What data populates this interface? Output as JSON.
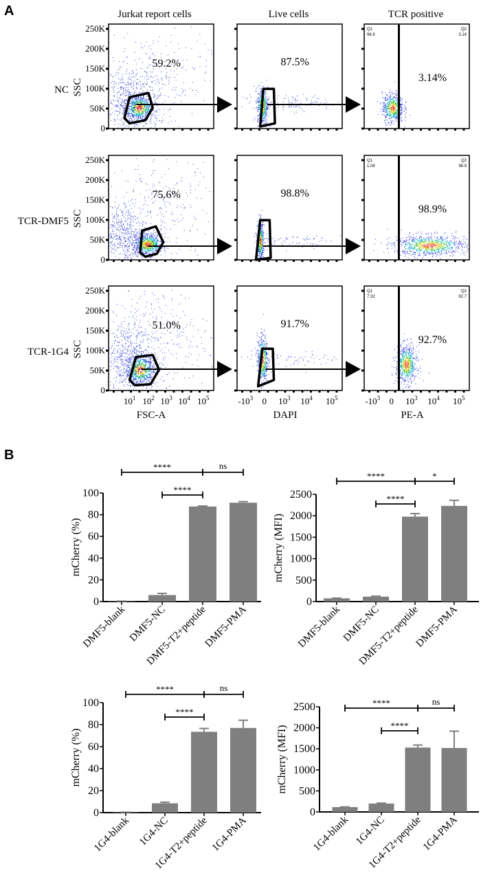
{
  "panel_labels": {
    "a": "A",
    "b": "B"
  },
  "flow": {
    "column_titles": [
      "Jurkat report cells",
      "Live cells",
      "TCR positive"
    ],
    "y_axis_label": "SSC",
    "y_ticks": [
      "0",
      "50K",
      "100K",
      "150K",
      "200K",
      "250K"
    ],
    "x_axis_labels": [
      "FSC-A",
      "DAPI",
      "PE-A"
    ],
    "x_ticks": [
      [
        {
          "base": "10",
          "exp": "1"
        },
        {
          "base": "10",
          "exp": "2"
        },
        {
          "base": "10",
          "exp": "3"
        },
        {
          "base": "10",
          "exp": "4"
        },
        {
          "base": "10",
          "exp": "5"
        }
      ],
      [
        {
          "base": "-10",
          "exp": "3"
        },
        {
          "base": "0",
          "exp": ""
        },
        {
          "base": "10",
          "exp": "3"
        },
        {
          "base": "10",
          "exp": "4"
        },
        {
          "base": "10",
          "exp": "5"
        }
      ],
      [
        {
          "base": "-10",
          "exp": "3"
        },
        {
          "base": "0",
          "exp": ""
        },
        {
          "base": "10",
          "exp": "3"
        },
        {
          "base": "10",
          "exp": "4"
        },
        {
          "base": "10",
          "exp": "5"
        }
      ]
    ],
    "rows": [
      {
        "label": "NC",
        "gate_pcts": [
          "59.2%",
          "87.5%",
          "3.14%"
        ],
        "quadrants": {
          "q1": "Q1",
          "q1_value": "96.9",
          "q2": "Q2",
          "q2_value": "3.14"
        }
      },
      {
        "label": "TCR-DMF5",
        "gate_pcts": [
          "75.6%",
          "98.8%",
          "98.9%"
        ],
        "quadrants": {
          "q1": "Q1",
          "q1_value": "1.08",
          "q2": "Q2",
          "q2_value": "98.9"
        }
      },
      {
        "label": "TCR-1G4",
        "gate_pcts": [
          "51.0%",
          "91.7%",
          "92.7%"
        ],
        "quadrants": {
          "q1": "Q1",
          "q1_value": "7.32",
          "q2": "Q2",
          "q2_value": "92.7"
        }
      }
    ]
  },
  "chart_data": [
    {
      "type": "bar",
      "categories": [
        "DMF5-blank",
        "DMF5-NC",
        "DMF5-T2+peptide",
        "DMF5-PMA"
      ],
      "values": [
        0.3,
        6,
        87.5,
        91
      ],
      "errors": [
        0.1,
        1.5,
        0.5,
        1
      ],
      "ylabel": "mCherry (%)",
      "ylim": [
        0,
        100
      ],
      "yticks": [
        "0",
        "20",
        "40",
        "60",
        "80",
        "100"
      ],
      "bar_color": "#7f7f7f",
      "comparisons": [
        {
          "from": 0,
          "to": 2,
          "label": "****"
        },
        {
          "from": 2,
          "to": 3,
          "label": "ns"
        },
        {
          "from": 1,
          "to": 2,
          "label": "****"
        }
      ]
    },
    {
      "type": "bar",
      "categories": [
        "DMF5-blank",
        "DMF5-NC",
        "DMF5-T2+peptide",
        "DMF5-PMA"
      ],
      "values": [
        75,
        115,
        1980,
        2230
      ],
      "errors": [
        5,
        10,
        70,
        130
      ],
      "ylabel": "mCherry (MFI)",
      "ylim": [
        0,
        2500
      ],
      "yticks": [
        "0",
        "500",
        "1000",
        "1500",
        "2000",
        "2500"
      ],
      "bar_color": "#7f7f7f",
      "comparisons": [
        {
          "from": 0,
          "to": 2,
          "label": "****"
        },
        {
          "from": 2,
          "to": 3,
          "label": "*"
        },
        {
          "from": 1,
          "to": 2,
          "label": "****"
        }
      ]
    },
    {
      "type": "bar",
      "categories": [
        "1G4-blank",
        "1G4-NC",
        "1G4-T2+peptide",
        "1G4-PMA"
      ],
      "values": [
        0.3,
        8.5,
        73.5,
        77
      ],
      "errors": [
        0.1,
        1,
        3,
        7
      ],
      "ylabel": "mCherry (%)",
      "ylim": [
        0,
        100
      ],
      "yticks": [
        "0",
        "20",
        "40",
        "60",
        "80",
        "100"
      ],
      "bar_color": "#7f7f7f",
      "comparisons": [
        {
          "from": 0,
          "to": 2,
          "label": "****"
        },
        {
          "from": 2,
          "to": 3,
          "label": "ns"
        },
        {
          "from": 1,
          "to": 2,
          "label": "****"
        }
      ]
    },
    {
      "type": "bar",
      "categories": [
        "1G4-blank",
        "1G4-NC",
        "1G4-T2+peptide",
        "1G4-PMA"
      ],
      "values": [
        115,
        200,
        1530,
        1520
      ],
      "errors": [
        5,
        10,
        60,
        400
      ],
      "ylabel": "mCherry (MFI)",
      "ylim": [
        0,
        2500
      ],
      "yticks": [
        "0",
        "500",
        "1000",
        "1500",
        "2000",
        "2500"
      ],
      "bar_color": "#7f7f7f",
      "comparisons": [
        {
          "from": 0,
          "to": 2,
          "label": "****"
        },
        {
          "from": 2,
          "to": 3,
          "label": "ns"
        },
        {
          "from": 1,
          "to": 2,
          "label": "****"
        }
      ]
    }
  ]
}
